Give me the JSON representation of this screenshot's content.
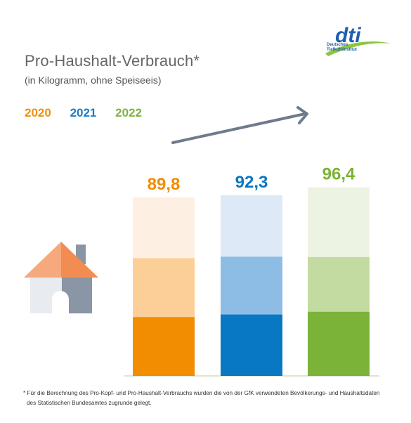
{
  "header": {
    "title": "Pro-Haushalt-Verbrauch*",
    "subtitle": "(in Kilogramm, ohne Speiseeis)"
  },
  "logo": {
    "brand": "dti",
    "line1": "Deutsches",
    "line2": "Tiefkühlinstitut",
    "color": "#1f5fad",
    "swoosh": "#8cc63f"
  },
  "legend": [
    {
      "label": "2020",
      "color": "#f0900a"
    },
    {
      "label": "2021",
      "color": "#1a7cc6"
    },
    {
      "label": "2022",
      "color": "#7cb342"
    }
  ],
  "chart_data": {
    "type": "bar",
    "categories": [
      "2020",
      "2021",
      "2022"
    ],
    "values": [
      89.8,
      92.3,
      96.4
    ],
    "value_labels": [
      "89,8",
      "92,3",
      "96,4"
    ],
    "colors": [
      "#f28c00",
      "#0878c4",
      "#7ab338"
    ],
    "segment_colors": [
      [
        "#f28c00",
        "#fdcf98",
        "#fdf0e2"
      ],
      [
        "#0878c4",
        "#8dbde4",
        "#dde9f6"
      ],
      [
        "#7ab338",
        "#c3dba0",
        "#edf3e2"
      ]
    ],
    "trend": "increasing",
    "icon": "house-icon"
  },
  "footnote": {
    "line1": "* Für die Berechnung des Pro-Kopf- und Pro-Haushalt-Verbrauchs wurden die von der GfK verwendeten Bevölkerungs- und Haushaltsdaten",
    "line2": "des Statistischen Bundesamtes zugrunde gelegt."
  }
}
